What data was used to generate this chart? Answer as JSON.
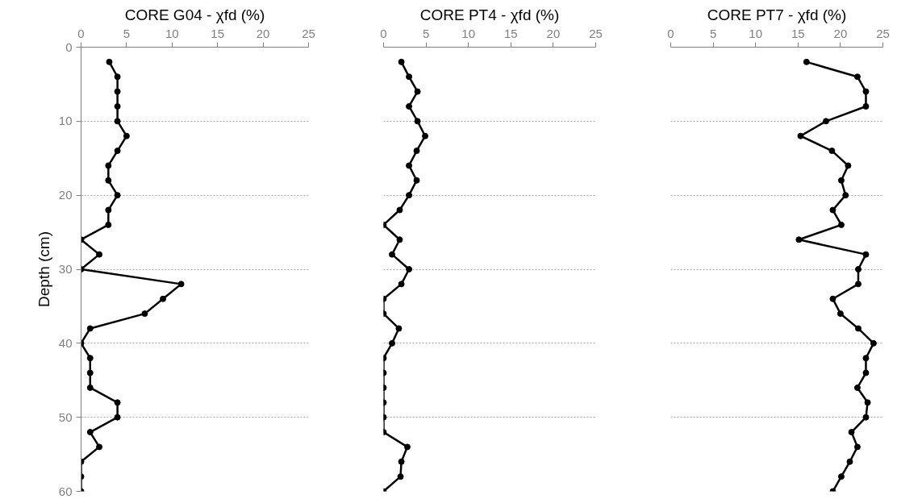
{
  "chart_data": [
    {
      "type": "line",
      "title": "CORE G04 - χfd (%)",
      "ylabel": "Depth (cm)",
      "xlim": [
        0,
        25
      ],
      "xticks": [
        0,
        5,
        10,
        15,
        20,
        25
      ],
      "ylim": [
        60,
        0
      ],
      "yticks": [
        0,
        10,
        20,
        30,
        40,
        50,
        60
      ],
      "grid": "y",
      "marker": "circle",
      "line_style": "solid",
      "series": [
        {
          "color": "#000000",
          "x": [
            3.1,
            4,
            4,
            4,
            4,
            5,
            4,
            3,
            3,
            4,
            3,
            3,
            0,
            2,
            0,
            11,
            9,
            7,
            1,
            0,
            1,
            1,
            1,
            4,
            4,
            1,
            2,
            0,
            0,
            0
          ],
          "values": [
            2,
            4,
            6,
            8,
            10,
            12,
            14,
            16,
            18,
            20,
            22,
            24,
            26,
            28,
            30,
            32,
            34,
            36,
            38,
            40,
            42,
            44,
            46,
            48,
            50,
            52,
            54,
            56,
            58,
            60
          ]
        }
      ]
    },
    {
      "type": "line",
      "title": "CORE PT4 - χfd (%)",
      "xlim": [
        0,
        25
      ],
      "xticks": [
        0,
        5,
        10,
        15,
        20,
        25
      ],
      "ylim": [
        60,
        0
      ],
      "yticks": [
        0,
        10,
        20,
        30,
        40,
        50,
        60
      ],
      "grid": "y",
      "marker": "circle",
      "line_style": "solid",
      "tick_labels": "x",
      "series": [
        {
          "color": "#000000",
          "x": [
            2.1,
            3,
            4,
            3,
            4,
            4.9,
            3.9,
            3,
            3.9,
            3,
            1.9,
            0,
            1.9,
            1,
            3,
            2.1,
            0,
            0,
            1.8,
            1,
            0,
            0,
            0,
            0,
            0,
            0,
            2.8,
            2.1,
            2,
            0
          ],
          "values": [
            2,
            4,
            6,
            8,
            10,
            12,
            14,
            16,
            18,
            20,
            22,
            24,
            26,
            28,
            30,
            32,
            34,
            36,
            38,
            40,
            42,
            44,
            46,
            48,
            50,
            52,
            54,
            56,
            58,
            60
          ]
        }
      ]
    },
    {
      "type": "line",
      "title": "CORE PT7 - χfd (%)",
      "xlim": [
        0,
        25
      ],
      "xticks": [
        0,
        5,
        10,
        15,
        20,
        25
      ],
      "ylim": [
        60,
        0
      ],
      "yticks": [
        0,
        10,
        20,
        30,
        40,
        50,
        60
      ],
      "grid": "y",
      "marker": "circle",
      "line_style": "solid",
      "tick_labels": "x",
      "series": [
        {
          "color": "#000000",
          "x": [
            16,
            22,
            23,
            23,
            18.3,
            15.3,
            19,
            20.9,
            20.1,
            20.6,
            19.1,
            20.1,
            15.1,
            23,
            22.1,
            22.1,
            19.1,
            20,
            22.1,
            23.9,
            23,
            23,
            22,
            23.2,
            23,
            21.3,
            22,
            21.1,
            20.1,
            19.1
          ],
          "values": [
            2,
            4,
            6,
            8,
            10,
            12,
            14,
            16,
            18,
            20,
            22,
            24,
            26,
            28,
            30,
            32,
            34,
            36,
            38,
            40,
            42,
            44,
            46,
            48,
            50,
            52,
            54,
            56,
            58,
            60
          ]
        }
      ]
    }
  ]
}
